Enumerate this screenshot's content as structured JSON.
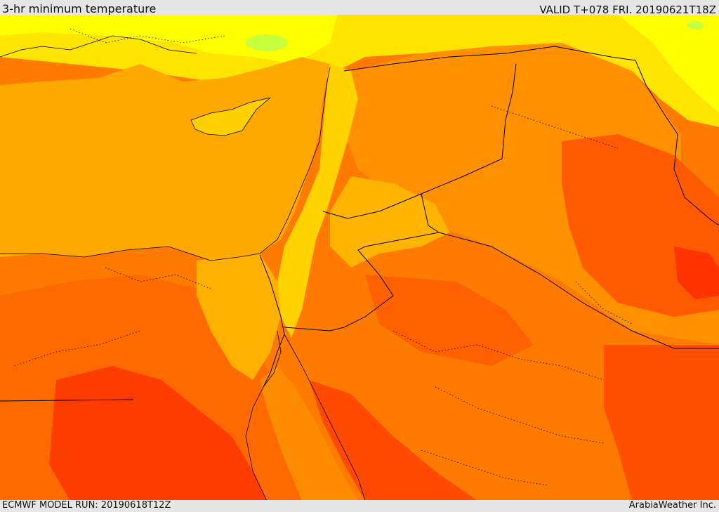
{
  "header": {
    "title": "3-hr minimum temperature",
    "valid": "VALID T+078 FRI. 20190621T18Z"
  },
  "footer": {
    "model_run": "ECMWF MODEL RUN: 20190618T12Z",
    "credit": "ArabiaWeather Inc."
  },
  "palette": {
    "cool_yellow": "#ffff00",
    "yellow": "#ffe400",
    "light_orange": "#ffc400",
    "orange": "#ffa500",
    "dark_orange": "#ff8c00",
    "red_orange": "#ff5a00",
    "red": "#ff3300",
    "green_patch": "#c8ff3c",
    "boundary_color": "#000000"
  }
}
